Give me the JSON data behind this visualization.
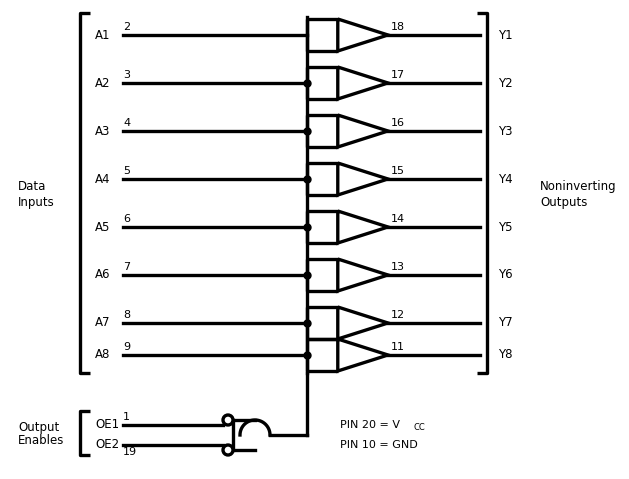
{
  "background": "#ffffff",
  "inputs": [
    "A1",
    "A2",
    "A3",
    "A4",
    "A5",
    "A6",
    "A7",
    "A8"
  ],
  "input_pins": [
    "2",
    "3",
    "4",
    "5",
    "6",
    "7",
    "8",
    "9"
  ],
  "outputs": [
    "Y1",
    "Y2",
    "Y3",
    "Y4",
    "Y5",
    "Y6",
    "Y7",
    "Y8"
  ],
  "output_pins": [
    "18",
    "17",
    "16",
    "15",
    "14",
    "13",
    "12",
    "11"
  ],
  "oe_labels": [
    "OE1",
    "OE2"
  ],
  "oe_pins": [
    "1",
    "19"
  ],
  "label_data_inputs_1": "Data",
  "label_data_inputs_2": "Inputs",
  "label_noninverting_1": "Noninverting",
  "label_noninverting_2": "Outputs",
  "label_output_enables_1": "Output",
  "label_output_enables_2": "Enables",
  "lw": 1.6,
  "dot_size": 5.0,
  "font_size_label": 8.5,
  "font_size_pin": 8.0
}
